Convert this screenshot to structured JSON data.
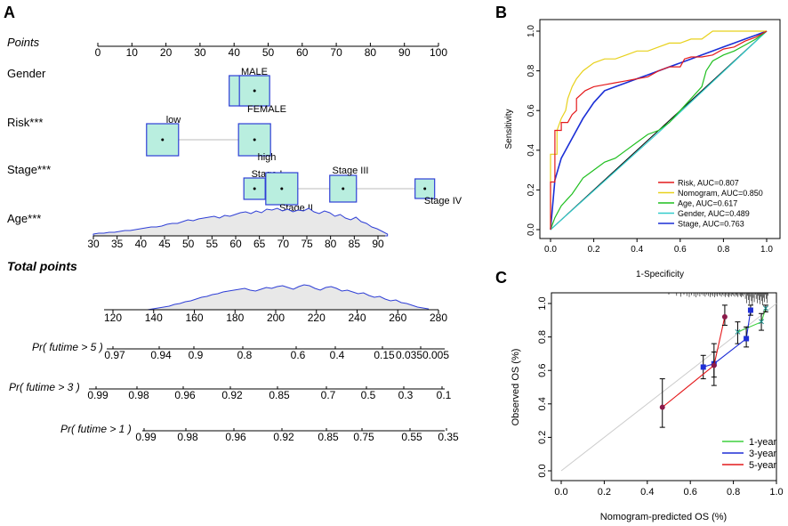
{
  "chart_data": [
    {
      "panel": "A",
      "type": "nomogram",
      "points_scale": {
        "label": "Points",
        "ticks": [
          0,
          10,
          20,
          30,
          40,
          50,
          60,
          70,
          80,
          90,
          100
        ]
      },
      "variables": [
        {
          "name": "Gender",
          "levels": [
            {
              "label": "MALE",
              "points": 43
            },
            {
              "label": "FEMALE",
              "points": 46
            }
          ]
        },
        {
          "name": "Risk***",
          "levels": [
            {
              "label": "low",
              "points": 19
            },
            {
              "label": "high",
              "points": 46
            }
          ]
        },
        {
          "name": "Stage***",
          "levels": [
            {
              "label": "Stage I",
              "points": 46
            },
            {
              "label": "Stage II",
              "points": 54
            },
            {
              "label": "Stage III",
              "points": 72
            },
            {
              "label": "Stage IV",
              "points": 96
            }
          ]
        },
        {
          "name": "Age***",
          "ticks": [
            30,
            35,
            40,
            45,
            50,
            55,
            60,
            65,
            70,
            75,
            80,
            85,
            90
          ]
        }
      ],
      "total_points": {
        "label": "Total points",
        "ticks": [
          120,
          140,
          160,
          180,
          200,
          220,
          240,
          260,
          280
        ]
      },
      "probability_axes": [
        {
          "label": "Pr( futime > 5 )",
          "ticks": [
            "0.97",
            "0.94",
            "0.9",
            "0.8",
            "0.6",
            "0.4",
            "0.15",
            "0.0350.005"
          ]
        },
        {
          "label": "Pr( futime > 3 )",
          "ticks": [
            "0.99",
            "0.98",
            "0.96",
            "0.92",
            "0.85",
            "0.7",
            "0.5",
            "0.3",
            "0.1"
          ]
        },
        {
          "label": "Pr( futime > 1 )",
          "ticks": [
            "0.99",
            "0.98",
            "0.96",
            "0.92",
            "0.85",
            "0.75",
            "0.55",
            "0.35"
          ]
        }
      ]
    },
    {
      "panel": "B",
      "type": "line",
      "xlabel": "1-Specificity",
      "ylabel": "Sensitivity",
      "xlim": [
        0,
        1
      ],
      "ylim": [
        0,
        1
      ],
      "xticks": [
        "0.0",
        "0.2",
        "0.4",
        "0.6",
        "0.8",
        "1.0"
      ],
      "yticks": [
        "0.0",
        "0.2",
        "0.4",
        "0.6",
        "0.8",
        "1.0"
      ],
      "legend_position": "bottom-right",
      "series": [
        {
          "name": "Risk, AUC=0.807",
          "color": "#e41a1c",
          "x": [
            0,
            0,
            0.02,
            0.02,
            0.05,
            0.05,
            0.08,
            0.1,
            0.12,
            0.12,
            0.16,
            0.2,
            0.25,
            0.3,
            0.35,
            0.4,
            0.45,
            0.5,
            0.55,
            0.6,
            0.62,
            0.65,
            0.7,
            0.75,
            0.8,
            0.85,
            0.9,
            0.95,
            1
          ],
          "y": [
            0,
            0.24,
            0.24,
            0.5,
            0.5,
            0.54,
            0.54,
            0.58,
            0.6,
            0.66,
            0.7,
            0.72,
            0.73,
            0.74,
            0.75,
            0.76,
            0.77,
            0.8,
            0.82,
            0.82,
            0.86,
            0.87,
            0.87,
            0.88,
            0.91,
            0.92,
            0.95,
            0.97,
            1
          ]
        },
        {
          "name": "Nomogram, AUC=0.850",
          "color": "#e8d11c",
          "x": [
            0,
            0,
            0.03,
            0.03,
            0.05,
            0.07,
            0.08,
            0.1,
            0.12,
            0.15,
            0.2,
            0.25,
            0.3,
            0.35,
            0.4,
            0.45,
            0.5,
            0.55,
            0.6,
            0.65,
            0.7,
            0.75,
            0.8,
            0.85,
            0.9,
            0.95,
            1
          ],
          "y": [
            0,
            0.38,
            0.38,
            0.5,
            0.56,
            0.6,
            0.66,
            0.72,
            0.76,
            0.8,
            0.84,
            0.86,
            0.86,
            0.88,
            0.9,
            0.9,
            0.92,
            0.94,
            0.94,
            0.96,
            0.96,
            1,
            1,
            1,
            1,
            1,
            1
          ]
        },
        {
          "name": "Age, AUC=0.617",
          "color": "#1fbf1f",
          "x": [
            0,
            0.02,
            0.05,
            0.1,
            0.15,
            0.2,
            0.25,
            0.3,
            0.35,
            0.4,
            0.45,
            0.5,
            0.55,
            0.6,
            0.65,
            0.7,
            0.72,
            0.75,
            0.8,
            0.85,
            0.9,
            0.95,
            1
          ],
          "y": [
            0,
            0.06,
            0.12,
            0.18,
            0.26,
            0.3,
            0.34,
            0.36,
            0.4,
            0.44,
            0.48,
            0.5,
            0.54,
            0.6,
            0.66,
            0.72,
            0.8,
            0.85,
            0.88,
            0.9,
            0.93,
            0.96,
            1
          ]
        },
        {
          "name": "Gender, AUC=0.489",
          "color": "#33cccc",
          "x": [
            0,
            0.5,
            1
          ],
          "y": [
            0,
            0.49,
            1
          ]
        },
        {
          "name": "Stage, AUC=0.763",
          "color": "#1b2fd6",
          "x": [
            0,
            0.02,
            0.05,
            0.1,
            0.15,
            0.2,
            0.25,
            0.3,
            0.35,
            0.4,
            0.45,
            0.5,
            0.55,
            0.6,
            0.65,
            0.7,
            0.75,
            0.8,
            0.85,
            0.9,
            0.95,
            1
          ],
          "y": [
            0,
            0.25,
            0.36,
            0.46,
            0.56,
            0.64,
            0.7,
            0.72,
            0.74,
            0.76,
            0.78,
            0.8,
            0.82,
            0.84,
            0.86,
            0.88,
            0.9,
            0.92,
            0.94,
            0.96,
            0.98,
            1
          ]
        }
      ]
    },
    {
      "panel": "C",
      "type": "line",
      "xlabel": "Nomogram-predicted OS (%)",
      "ylabel": "Observed OS (%)",
      "xlim": [
        0,
        1
      ],
      "ylim": [
        0,
        1
      ],
      "xticks": [
        "0.0",
        "0.2",
        "0.4",
        "0.6",
        "0.8",
        "1.0"
      ],
      "yticks": [
        "0.0",
        "0.2",
        "0.4",
        "0.6",
        "0.8",
        "1.0"
      ],
      "legend_position": "bottom-right",
      "series": [
        {
          "name": "1-year",
          "color": "#3fd13f",
          "x": [
            0.82,
            0.93,
            0.95
          ],
          "y": [
            0.83,
            0.89,
            0.97
          ],
          "err_low": [
            0.76,
            0.84,
            0.95
          ],
          "err_high": [
            0.89,
            0.94,
            0.99
          ]
        },
        {
          "name": "3-year",
          "color": "#1f2fd6",
          "x": [
            0.66,
            0.71,
            0.86,
            0.88
          ],
          "y": [
            0.62,
            0.64,
            0.79,
            0.96
          ],
          "err_low": [
            0.55,
            0.56,
            0.74,
            0.93
          ],
          "err_high": [
            0.69,
            0.71,
            0.86,
            0.99
          ]
        },
        {
          "name": "5-year",
          "color": "#e41a1c",
          "x": [
            0.47,
            0.71,
            0.76
          ],
          "y": [
            0.38,
            0.63,
            0.92
          ],
          "err_low": [
            0.26,
            0.51,
            0.87
          ],
          "err_high": [
            0.55,
            0.76,
            0.99
          ]
        }
      ]
    }
  ],
  "panel_labels": {
    "a": "A",
    "b": "B",
    "c": "C"
  }
}
